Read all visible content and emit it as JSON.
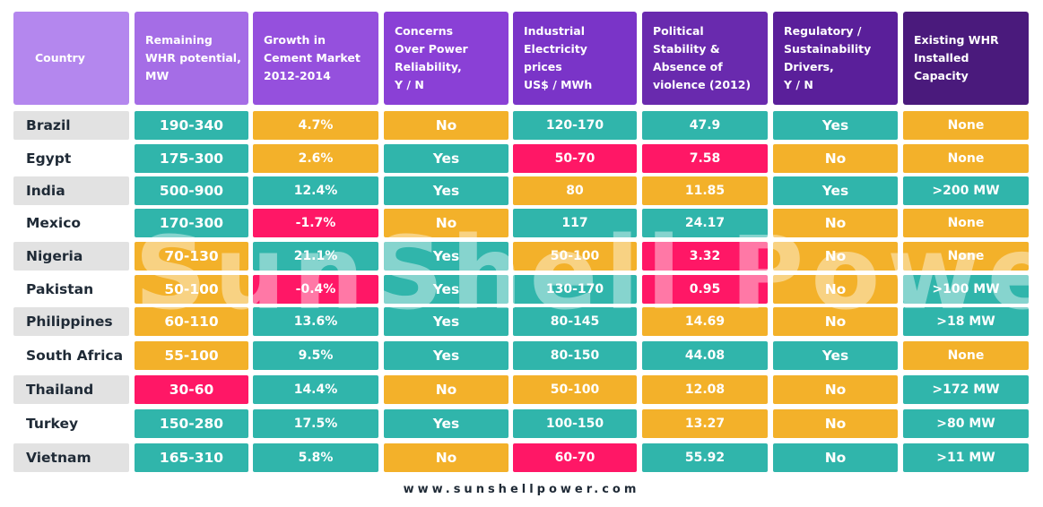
{
  "headers": [
    "Country",
    "Remaining\nWHR potential,\nMW",
    "Growth in\nCement Market\n2012-2014",
    "Concerns\nOver Power\nReliability,\nY / N",
    "Industrial\nElectricity\nprices\nUS$ / MWh",
    "Political\nStability &\nAbsence of\nviolence (2012)",
    "Regulatory /\nSustainability\nDrivers,\nY / N",
    "Existing WHR\nInstalled\nCapacity"
  ],
  "header_colors": [
    "#b487ee",
    "#a56de6",
    "#9550dd",
    "#8a40d6",
    "#7a34c8",
    "#692aae",
    "#5a1f9a",
    "#4a1a7c"
  ],
  "rows": [
    {
      "country": "Brazil",
      "whr": "190-340",
      "growth": "4.7%",
      "concerns": "No",
      "price": "120-170",
      "stability": "47.9",
      "drivers": "Yes",
      "capacity": "None"
    },
    {
      "country": "Egypt",
      "whr": "175-300",
      "growth": "2.6%",
      "concerns": "Yes",
      "price": "50-70",
      "stability": "7.58",
      "drivers": "No",
      "capacity": "None"
    },
    {
      "country": "India",
      "whr": "500-900",
      "growth": "12.4%",
      "concerns": "Yes",
      "price": "80",
      "stability": "11.85",
      "drivers": "Yes",
      "capacity": ">200 MW"
    },
    {
      "country": "Mexico",
      "whr": "170-300",
      "growth": "-1.7%",
      "concerns": "No",
      "price": "117",
      "stability": "24.17",
      "drivers": "No",
      "capacity": "None"
    },
    {
      "country": "Nigeria",
      "whr": "70-130",
      "growth": "21.1%",
      "concerns": "Yes",
      "price": "50-100",
      "stability": "3.32",
      "drivers": "No",
      "capacity": "None"
    },
    {
      "country": "Pakistan",
      "whr": "50-100",
      "growth": "-0.4%",
      "concerns": "Yes",
      "price": "130-170",
      "stability": "0.95",
      "drivers": "No",
      "capacity": ">100 MW"
    },
    {
      "country": "Philippines",
      "whr": "60-110",
      "growth": "13.6%",
      "concerns": "Yes",
      "price": "80-145",
      "stability": "14.69",
      "drivers": "No",
      "capacity": ">18 MW"
    },
    {
      "country": "South Africa",
      "whr": "55-100",
      "growth": "9.5%",
      "concerns": "Yes",
      "price": "80-150",
      "stability": "44.08",
      "drivers": "Yes",
      "capacity": "None"
    },
    {
      "country": "Thailand",
      "whr": "30-60",
      "growth": "14.4%",
      "concerns": "No",
      "price": "50-100",
      "stability": "12.08",
      "drivers": "No",
      "capacity": ">172 MW"
    },
    {
      "country": "Turkey",
      "whr": "150-280",
      "growth": "17.5%",
      "concerns": "Yes",
      "price": "100-150",
      "stability": "13.27",
      "drivers": "No",
      "capacity": ">80 MW"
    },
    {
      "country": "Vietnam",
      "whr": "165-310",
      "growth": "5.8%",
      "concerns": "No",
      "price": "60-70",
      "stability": "55.92",
      "drivers": "No",
      "capacity": ">11 MW"
    }
  ],
  "cell_colors": [
    [
      "teal",
      "yellow",
      "yellow",
      "teal",
      "teal",
      "teal",
      "yellow"
    ],
    [
      "teal",
      "yellow",
      "teal",
      "red",
      "red",
      "yellow",
      "yellow"
    ],
    [
      "teal",
      "teal",
      "teal",
      "yellow",
      "yellow",
      "teal",
      "teal"
    ],
    [
      "teal",
      "red",
      "yellow",
      "teal",
      "teal",
      "yellow",
      "yellow"
    ],
    [
      "yellow",
      "teal",
      "teal",
      "yellow",
      "red",
      "yellow",
      "yellow"
    ],
    [
      "yellow",
      "red",
      "teal",
      "teal",
      "red",
      "yellow",
      "teal"
    ],
    [
      "yellow",
      "teal",
      "teal",
      "teal",
      "yellow",
      "yellow",
      "teal"
    ],
    [
      "yellow",
      "teal",
      "teal",
      "teal",
      "teal",
      "teal",
      "yellow"
    ],
    [
      "red",
      "teal",
      "yellow",
      "yellow",
      "yellow",
      "yellow",
      "teal"
    ],
    [
      "teal",
      "teal",
      "teal",
      "teal",
      "yellow",
      "yellow",
      "teal"
    ],
    [
      "teal",
      "teal",
      "yellow",
      "red",
      "teal",
      "teal",
      "teal"
    ]
  ],
  "palette": {
    "teal": "#30b5ab",
    "yellow": "#f3b12a",
    "red": "#ff1766"
  },
  "watermark": "SunShell Power",
  "footer": "www.sunshellpower.com"
}
